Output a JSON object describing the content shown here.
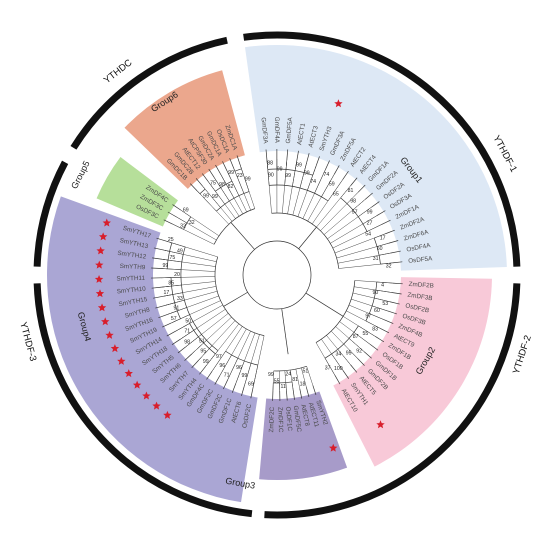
{
  "families": [
    {
      "name": "YTHDC",
      "angle": -38
    },
    {
      "name": "YTHDF-1",
      "angle": 62
    },
    {
      "name": "YTHDF-2",
      "angle": 108
    },
    {
      "name": "YTHDF-3",
      "angle": 255
    }
  ],
  "groups": [
    {
      "name": "Group1",
      "color": "#dde8f5",
      "angle": 52
    },
    {
      "name": "Group2",
      "color": "#f8c9d8",
      "angle": 120
    },
    {
      "name": "Group3",
      "color": "#a79bc9",
      "angle": 190
    },
    {
      "name": "Group4",
      "color": "#aaa6d4",
      "angle": 255
    },
    {
      "name": "Group5",
      "color": "#b6df9a",
      "angle": -63
    },
    {
      "name": "Group6",
      "color": "#eba78d",
      "angle": -33
    }
  ],
  "leaves": [
    "ZmDC1A",
    "OsDC1A",
    "GmDC1A",
    "GmDC2A",
    "AtCPSF30",
    "AtECT12",
    "GmDC2B",
    "GmDC1B",
    "ZmDF4C",
    "ZmDF3C",
    "OsDF3C",
    "SmYTH17",
    "SmYTH13",
    "SmYTH12",
    "SmYTH9",
    "SmYTH11",
    "SmYTH10",
    "SmYTH15",
    "SmYTH8",
    "SmYTH16",
    "SmYTH19",
    "SmYTH14",
    "SmYTH18",
    "SmYTH5",
    "SmYTH6",
    "SmYTH7",
    "SmYTH4",
    "GmDF4C",
    "GmDF3C",
    "GmDF2C",
    "GmDF1C",
    "AtECT6",
    "OsDF2C",
    "ZmDF2C",
    "ZmDF1C",
    "OsDF1C",
    "GmDF5C",
    "AtECT8",
    "AtECT11",
    "SmYTH2",
    "AtECT10",
    "SmYTH1",
    "AtECT5",
    "GmDF2B",
    "GmDF1B",
    "OsDF1B",
    "ZmDF1B",
    "AtECT9",
    "ZmDF4B",
    "OsDF3B",
    "OsDF2B",
    "ZmDF3B",
    "ZmDF2B",
    "OsDF5A",
    "OsDF4A",
    "ZmDF6A",
    "ZmDF2A",
    "ZmDF1A",
    "OsDF3A",
    "OsDF2A",
    "GmDF2A",
    "GmDF1A",
    "AtECT4",
    "AtECT2",
    "ZmDF5A",
    "GmDF3A",
    "SmYTH3",
    "AtECT3",
    "AtECT1",
    "GmDF5A",
    "GmDF4A",
    "GmDF3A"
  ],
  "starred": [
    "SmYTH17",
    "SmYTH13",
    "SmYTH12",
    "SmYTH9",
    "SmYTH11",
    "SmYTH10",
    "SmYTH15",
    "SmYTH8",
    "SmYTH16",
    "SmYTH19",
    "SmYTH14",
    "SmYTH18",
    "SmYTH5",
    "SmYTH6",
    "SmYTH7",
    "SmYTH4",
    "SmYTH2",
    "SmYTH1",
    "SmYTH3"
  ],
  "bootstrap_values": [
    "99",
    "23",
    "99",
    "82",
    "98",
    "75",
    "99",
    "99",
    "69",
    "32",
    "32",
    "25",
    "49",
    "75",
    "99",
    "20",
    "85",
    "17",
    "33",
    "91",
    "57",
    "50",
    "71",
    "98",
    "51",
    "95",
    "99",
    "97",
    "96",
    "71",
    "96",
    "99",
    "69",
    "99",
    "55",
    "11",
    "24",
    "81",
    "18",
    "51",
    "37",
    "100",
    "34",
    "95",
    "92",
    "87",
    "55",
    "83",
    "97",
    "60",
    "53",
    "90",
    "4",
    "32",
    "31",
    "60",
    "17",
    "54",
    "27",
    "99",
    "57",
    "98",
    "81",
    "65",
    "59",
    "74",
    "74",
    "99",
    "99",
    "99",
    "99",
    "88",
    "90"
  ],
  "colors": {
    "star": "#d81e2c",
    "branch": "#333333",
    "ring": "#111111"
  }
}
